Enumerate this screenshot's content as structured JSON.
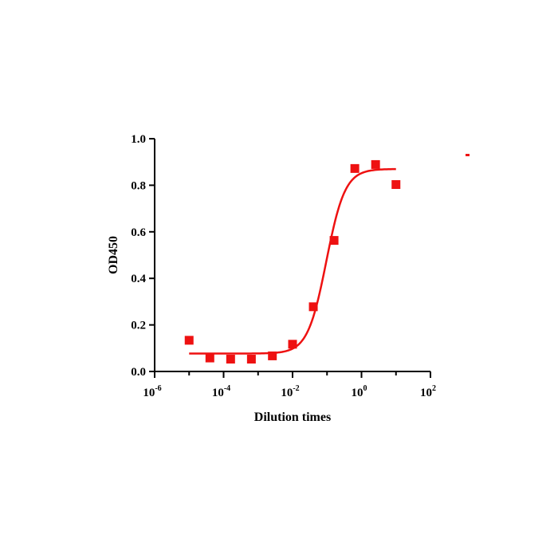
{
  "chart_data": {
    "type": "scatter",
    "xlabel": "Dilution times",
    "ylabel": "OD450",
    "x_scale": "log10",
    "xlim": [
      1e-06,
      100
    ],
    "ylim": [
      0,
      1.0
    ],
    "y_ticks": [
      "0.0",
      "0.2",
      "0.4",
      "0.6",
      "0.8",
      "1.0"
    ],
    "x_ticks": [
      {
        "base": "10",
        "exp": "-6"
      },
      {
        "base": "10",
        "exp": "-4"
      },
      {
        "base": "10",
        "exp": "-2"
      },
      {
        "base": "10",
        "exp": "0"
      },
      {
        "base": "10",
        "exp": "2"
      }
    ],
    "grid": false,
    "series": [
      {
        "color": "#ee1111",
        "marker": "square",
        "points": [
          {
            "x": 1e-05,
            "y": 0.134
          },
          {
            "x": 4e-05,
            "y": 0.058
          },
          {
            "x": 0.00016,
            "y": 0.053
          },
          {
            "x": 0.00064,
            "y": 0.053
          },
          {
            "x": 0.0026,
            "y": 0.067
          },
          {
            "x": 0.01,
            "y": 0.117
          },
          {
            "x": 0.04,
            "y": 0.278
          },
          {
            "x": 0.16,
            "y": 0.563
          },
          {
            "x": 0.64,
            "y": 0.872
          },
          {
            "x": 2.56,
            "y": 0.889
          },
          {
            "x": 10,
            "y": 0.803
          }
        ],
        "fit": {
          "model": "4PL",
          "bottom": 0.077,
          "top": 0.87,
          "log_ec50": -1.02,
          "hill": 1.6,
          "x_range": [
            1e-05,
            10
          ]
        }
      }
    ]
  }
}
